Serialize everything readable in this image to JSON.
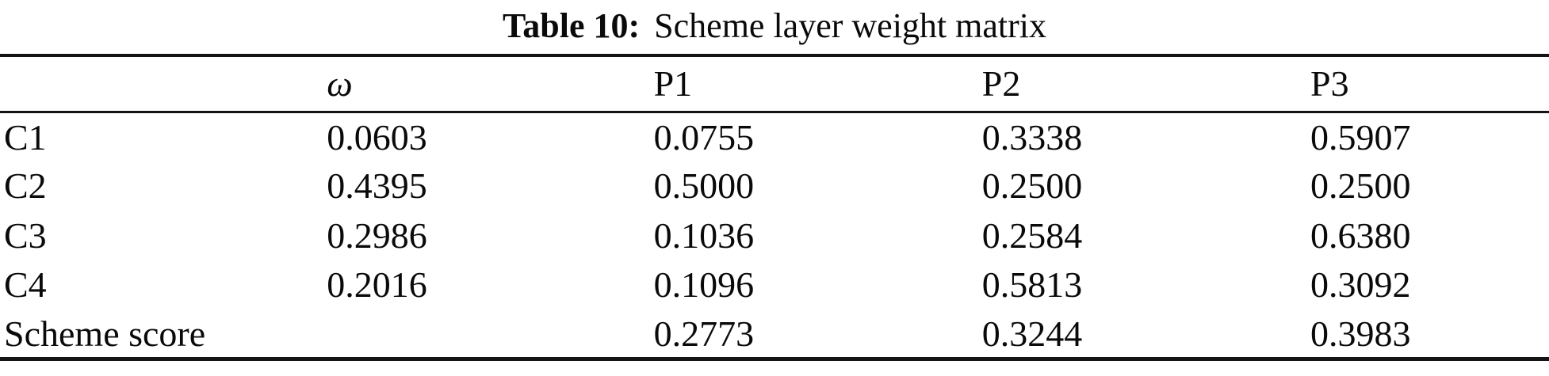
{
  "caption": {
    "label": "Table 10:",
    "text": "Scheme layer weight matrix"
  },
  "table": {
    "columns": {
      "label": "",
      "omega": "ω",
      "p1": "P1",
      "p2": "P2",
      "p3": "P3"
    },
    "rows": [
      {
        "label": "C1",
        "omega": "0.0603",
        "p1": "0.0755",
        "p2": "0.3338",
        "p3": "0.5907"
      },
      {
        "label": "C2",
        "omega": "0.4395",
        "p1": "0.5000",
        "p2": "0.2500",
        "p3": "0.2500"
      },
      {
        "label": "C3",
        "omega": "0.2986",
        "p1": "0.1036",
        "p2": "0.2584",
        "p3": "0.6380"
      },
      {
        "label": "C4",
        "omega": "0.2016",
        "p1": "0.1096",
        "p2": "0.5813",
        "p3": "0.3092"
      },
      {
        "label": "Scheme score",
        "omega": "",
        "p1": "0.2773",
        "p2": "0.3244",
        "p3": "0.3983"
      }
    ]
  },
  "chart_data": {
    "type": "table",
    "title": "Table 10: Scheme layer weight matrix",
    "columns": [
      "",
      "ω",
      "P1",
      "P2",
      "P3"
    ],
    "cells": [
      [
        "C1",
        0.0603,
        0.0755,
        0.3338,
        0.5907
      ],
      [
        "C2",
        0.4395,
        0.5,
        0.25,
        0.25
      ],
      [
        "C3",
        0.2986,
        0.1036,
        0.2584,
        0.638
      ],
      [
        "C4",
        0.2016,
        0.1096,
        0.5813,
        0.3092
      ],
      [
        "Scheme score",
        null,
        0.2773,
        0.3244,
        0.3983
      ]
    ],
    "colors": {
      "text": "#0a0a0a",
      "rule": "#141414",
      "background": "#ffffff"
    }
  }
}
